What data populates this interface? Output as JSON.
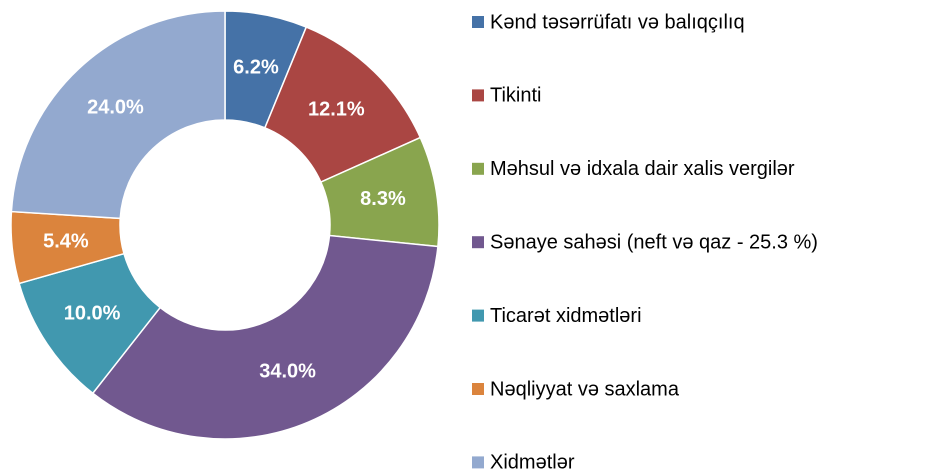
{
  "chart_data": {
    "type": "donut",
    "categories": [
      "Kənd təsərrüfatı və balıqçılıq",
      "Tikinti",
      "Məhsul və idxala dair xalis vergilər",
      "Sənaye sahəsi (neft və qaz - 25.3 %)",
      "Ticarət xidmətləri",
      "Nəqliyyat və saxlama",
      "Xidmətlər"
    ],
    "values": [
      6.2,
      12.1,
      8.3,
      34.0,
      10.0,
      5.4,
      24.0
    ],
    "value_labels": [
      "6.2%",
      "12.1%",
      "8.3%",
      "34.0%",
      "10.0%",
      "5.4%",
      "24.0%"
    ],
    "colors": [
      "#4572a7",
      "#aa4643",
      "#89a54e",
      "#71588f",
      "#4198af",
      "#db843d",
      "#93a9cf"
    ],
    "legend": "right"
  }
}
